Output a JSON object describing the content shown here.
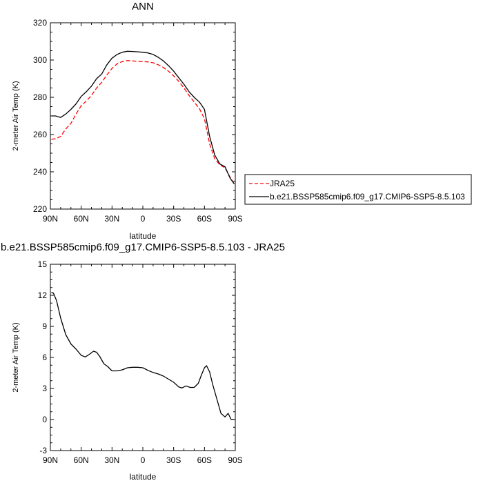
{
  "figure": {
    "top_title": "ANN",
    "bottom_title": "b.e21.BSSP585cmip6.f09_g17.CMIP6-SSP5-8.5.103 - JRA25"
  },
  "chart_data": [
    {
      "type": "line",
      "title": "ANN",
      "xlabel": "latitude",
      "ylabel": "2-meter Air Temp (K)",
      "x_tick_values": [
        90,
        60,
        30,
        0,
        -30,
        -60,
        -90
      ],
      "x_tick_labels": [
        "90N",
        "60N",
        "30N",
        "0",
        "30S",
        "60S",
        "90S"
      ],
      "xlim": [
        90,
        -90
      ],
      "ylim": [
        220,
        320
      ],
      "y_ticks": [
        220,
        240,
        260,
        280,
        300,
        320
      ],
      "grid": false,
      "legend_position": "right, outside the plot",
      "series": [
        {
          "name": "JRA25",
          "color": "#ff0000",
          "dash": "dashed",
          "x": [
            89,
            85,
            80,
            75,
            70,
            65,
            60,
            55,
            50,
            45,
            40,
            35,
            30,
            25,
            20,
            15,
            10,
            5,
            0,
            -5,
            -10,
            -15,
            -20,
            -25,
            -30,
            -35,
            -40,
            -45,
            -50,
            -55,
            -60,
            -65,
            -70,
            -75,
            -80,
            -85,
            -89
          ],
          "y": [
            257.5,
            257.7,
            259,
            263,
            266,
            271,
            275.5,
            278,
            281,
            285,
            288,
            292,
            295.5,
            298,
            299.2,
            299.7,
            299.5,
            299.3,
            299.1,
            299,
            298.5,
            297.5,
            296,
            294,
            291.5,
            288.5,
            285,
            281,
            277.5,
            274,
            268.5,
            255,
            247,
            243.7,
            242.2,
            237,
            233.5
          ]
        },
        {
          "name": "b.e21.BSSP585cmip6.f09_g17.CMIP6-SSP5-8.5.103",
          "color": "#000000",
          "dash": "solid",
          "x": [
            89,
            85,
            80,
            75,
            70,
            65,
            60,
            55,
            50,
            45,
            40,
            35,
            30,
            25,
            20,
            15,
            10,
            5,
            0,
            -5,
            -10,
            -15,
            -20,
            -25,
            -30,
            -35,
            -40,
            -45,
            -50,
            -55,
            -60,
            -65,
            -70,
            -75,
            -80,
            -85,
            -89
          ],
          "y": [
            270,
            270,
            269.2,
            271,
            273.5,
            276.5,
            280.5,
            283,
            286,
            290,
            292.5,
            297.5,
            301,
            303,
            304.2,
            304.7,
            304.6,
            304.4,
            304.2,
            303.8,
            303,
            301.5,
            299.5,
            297,
            294,
            290.5,
            287,
            283,
            280,
            277.5,
            273.5,
            259,
            249,
            244.2,
            242.7,
            236.5,
            233.5
          ]
        }
      ]
    },
    {
      "type": "line",
      "title": "b.e21.BSSP585cmip6.f09_g17.CMIP6-SSP5-8.5.103 - JRA25",
      "xlabel": "latitude",
      "ylabel": "2-meter Air Temp (K)",
      "x_tick_values": [
        90,
        60,
        30,
        0,
        -30,
        -60,
        -90
      ],
      "x_tick_labels": [
        "90N",
        "60N",
        "30N",
        "0",
        "30S",
        "60S",
        "90S"
      ],
      "xlim": [
        90,
        -90
      ],
      "ylim": [
        -3,
        15
      ],
      "y_ticks": [
        -3,
        0,
        3,
        6,
        9,
        12,
        15
      ],
      "grid": false,
      "series": [
        {
          "color": "#000000",
          "dash": "solid",
          "x": [
            89,
            87,
            84,
            80,
            75,
            70,
            65,
            60,
            56,
            52,
            48,
            45,
            42,
            38,
            34,
            30,
            25,
            20,
            15,
            10,
            5,
            0,
            -5,
            -10,
            -15,
            -20,
            -25,
            -30,
            -35,
            -38,
            -42,
            -46,
            -50,
            -54,
            -57,
            -60,
            -62,
            -65,
            -68,
            -72,
            -76,
            -80,
            -83,
            -86,
            -89
          ],
          "y": [
            12.3,
            12.2,
            11.5,
            9.8,
            8.2,
            7.3,
            6.8,
            6.2,
            6.05,
            6.3,
            6.6,
            6.5,
            6.1,
            5.4,
            5.1,
            4.7,
            4.7,
            4.8,
            5.0,
            5.05,
            5.05,
            5.0,
            4.75,
            4.55,
            4.4,
            4.2,
            3.9,
            3.6,
            3.15,
            3.05,
            3.25,
            3.1,
            3.1,
            3.5,
            4.3,
            5.0,
            5.2,
            4.6,
            3.4,
            2.0,
            0.6,
            0.25,
            0.6,
            0.0,
            0.0
          ]
        }
      ]
    }
  ]
}
